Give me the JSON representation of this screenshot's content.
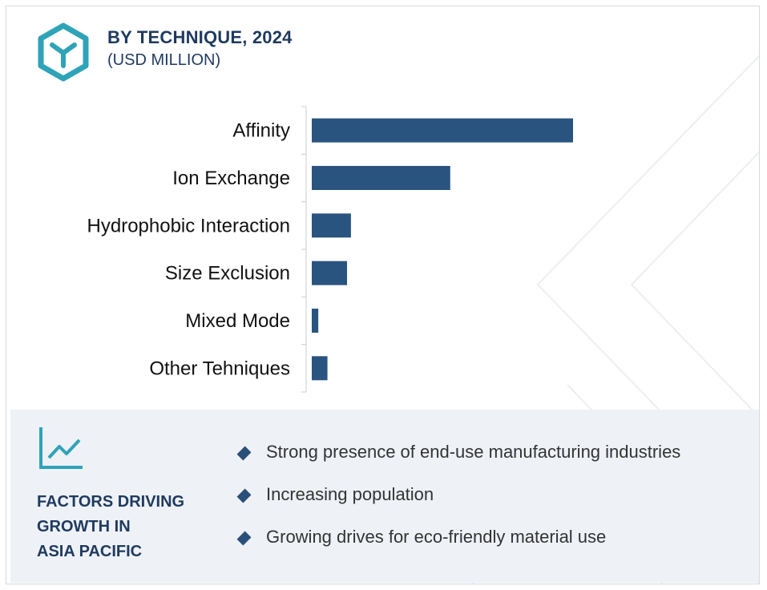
{
  "header": {
    "title": "BY TECHNIQUE, 2024",
    "subtitle": "(USD MILLION)",
    "icon": "cube-y-icon"
  },
  "colors": {
    "bar": "#2a5480",
    "accent": "#2fa3b8",
    "title": "#1f3a5f",
    "panel": "#eef1f6"
  },
  "chart_data": {
    "type": "bar",
    "orientation": "horizontal",
    "categories": [
      "Affinity",
      "Ion Exchange",
      "Hydrophobic Interaction",
      "Size Exclusion",
      "Mixed Mode",
      "Other Tehniques"
    ],
    "values": [
      100,
      53,
      15,
      13.5,
      2.5,
      6
    ],
    "units": "relative (no value axis printed)",
    "title": "BY TECHNIQUE, 2024",
    "subtitle": "(USD MILLION)",
    "grid": false,
    "legend": "none"
  },
  "factors": {
    "title_lines": [
      "FACTORS DRIVING",
      "GROWTH IN",
      "ASIA PACIFIC"
    ],
    "icon": "trend-chart-icon",
    "items": [
      "Strong presence of end-use manufacturing industries",
      "Increasing population",
      "Growing drives for eco-friendly material use"
    ]
  }
}
